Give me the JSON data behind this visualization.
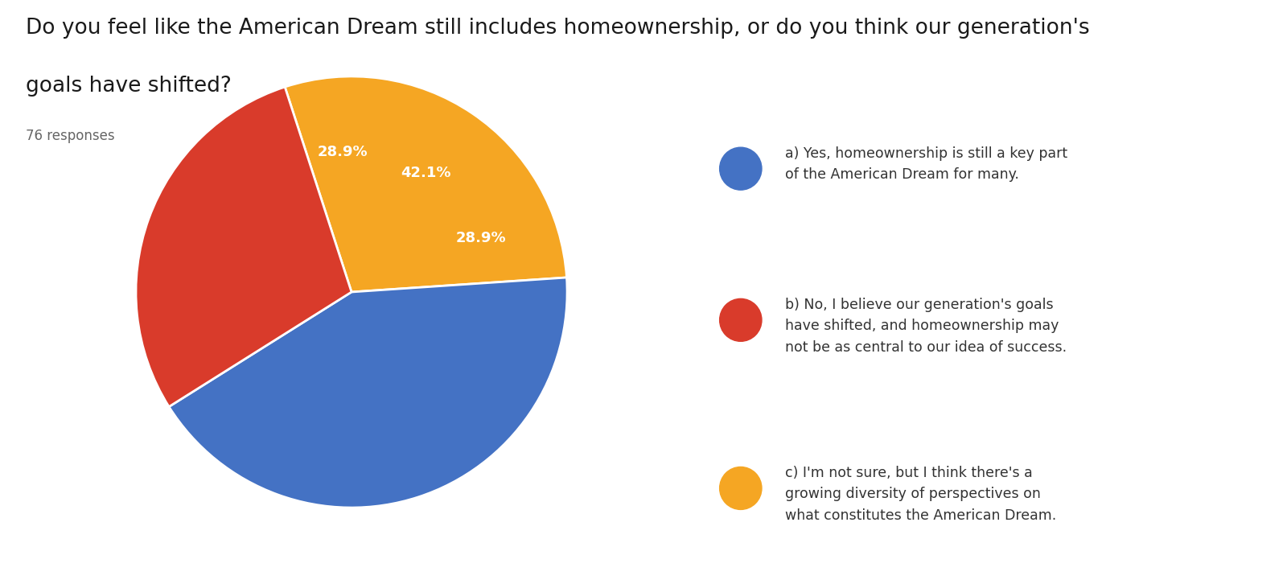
{
  "title_line1": "Do you feel like the American Dream still includes homeownership, or do you think our generation's",
  "title_line2": "goals have shifted?",
  "subtitle": "76 responses",
  "slices": [
    42.1,
    28.9,
    28.9
  ],
  "colors": [
    "#4472C4",
    "#D93B2B",
    "#F5A623"
  ],
  "labels": [
    "42.1%",
    "28.9%",
    "28.9%"
  ],
  "legend_labels": [
    "a) Yes, homeownership is still a key part\nof the American Dream for many.",
    "b) No, I believe our generation's goals\nhave shifted, and homeownership may\nnot be as central to our idea of success.",
    "c) I'm not sure, but I think there's a\ngrowing diversity of perspectives on\nwhat constitutes the American Dream."
  ],
  "startangle": 18,
  "background_color": "#ffffff",
  "title_fontsize": 19,
  "subtitle_fontsize": 12,
  "label_fontsize": 13,
  "legend_fontsize": 12.5
}
